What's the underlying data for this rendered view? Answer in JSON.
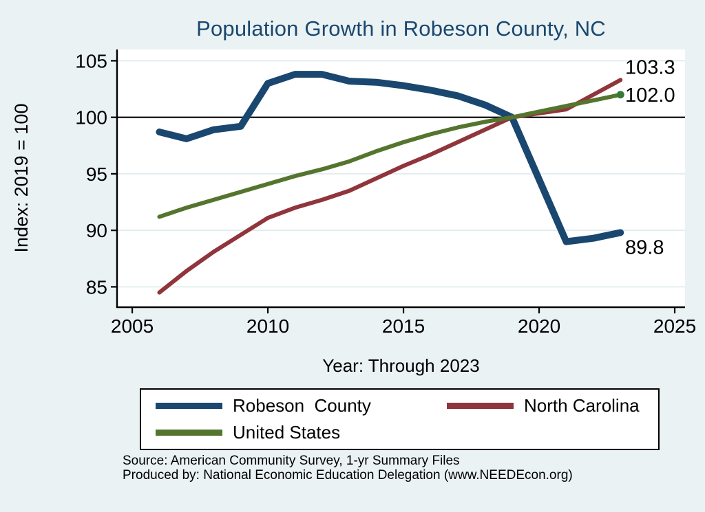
{
  "title": "Population Growth in Robeson County, NC",
  "notes": {
    "source": "Source: American Community Survey, 1-yr Summary Files",
    "produced_by": "Produced by: National Economic Education Delegation (www.NEEDEcon.org)"
  },
  "colors": {
    "background": "#eaf2f3",
    "plot_background": "#ffffff",
    "gridline": "#dfeaee",
    "axis": "#000000",
    "reference_line": "#000000",
    "title": "#1a476f",
    "end_marker_dot": "#357a38"
  },
  "chart_data": {
    "type": "line",
    "title": "Population Growth in Robeson County, NC",
    "xlabel": "Year: Through 2023",
    "ylabel": "Index: 2019 = 100",
    "x_ticks": [
      2005,
      2010,
      2015,
      2020,
      2025
    ],
    "y_ticks": [
      85,
      90,
      95,
      100,
      105
    ],
    "xlim": [
      2004.44,
      2025.38
    ],
    "ylim": [
      83.2,
      106.0
    ],
    "reference_line_y": 100,
    "grid": "horizontal",
    "legend_position": "bottom",
    "x": [
      2006,
      2007,
      2008,
      2009,
      2010,
      2011,
      2012,
      2013,
      2014,
      2015,
      2016,
      2017,
      2018,
      2019,
      2021,
      2022,
      2023
    ],
    "series": [
      {
        "name": "Robeson  County",
        "color": "#1a476f",
        "width": 10,
        "values": [
          98.7,
          98.1,
          98.9,
          99.2,
          103.0,
          103.8,
          103.8,
          103.2,
          103.1,
          102.8,
          102.4,
          101.9,
          101.1,
          100.0,
          89.0,
          89.3,
          89.8
        ],
        "end_label": "89.8",
        "end_marker": false
      },
      {
        "name": "North Carolina",
        "color": "#90353b",
        "width": 6,
        "values": [
          84.5,
          86.4,
          88.1,
          89.6,
          91.1,
          92.0,
          92.7,
          93.5,
          94.6,
          95.7,
          96.7,
          97.8,
          98.9,
          100.0,
          100.7,
          102.0,
          103.3
        ],
        "end_label": "103.3",
        "end_marker": false
      },
      {
        "name": "United States",
        "color": "#55752f",
        "width": 6,
        "values": [
          91.2,
          92.0,
          92.7,
          93.4,
          94.1,
          94.8,
          95.4,
          96.1,
          97.0,
          97.8,
          98.5,
          99.1,
          99.6,
          100.0,
          101.0,
          101.5,
          102.0
        ],
        "end_label": "102.0",
        "end_marker": true
      }
    ]
  }
}
